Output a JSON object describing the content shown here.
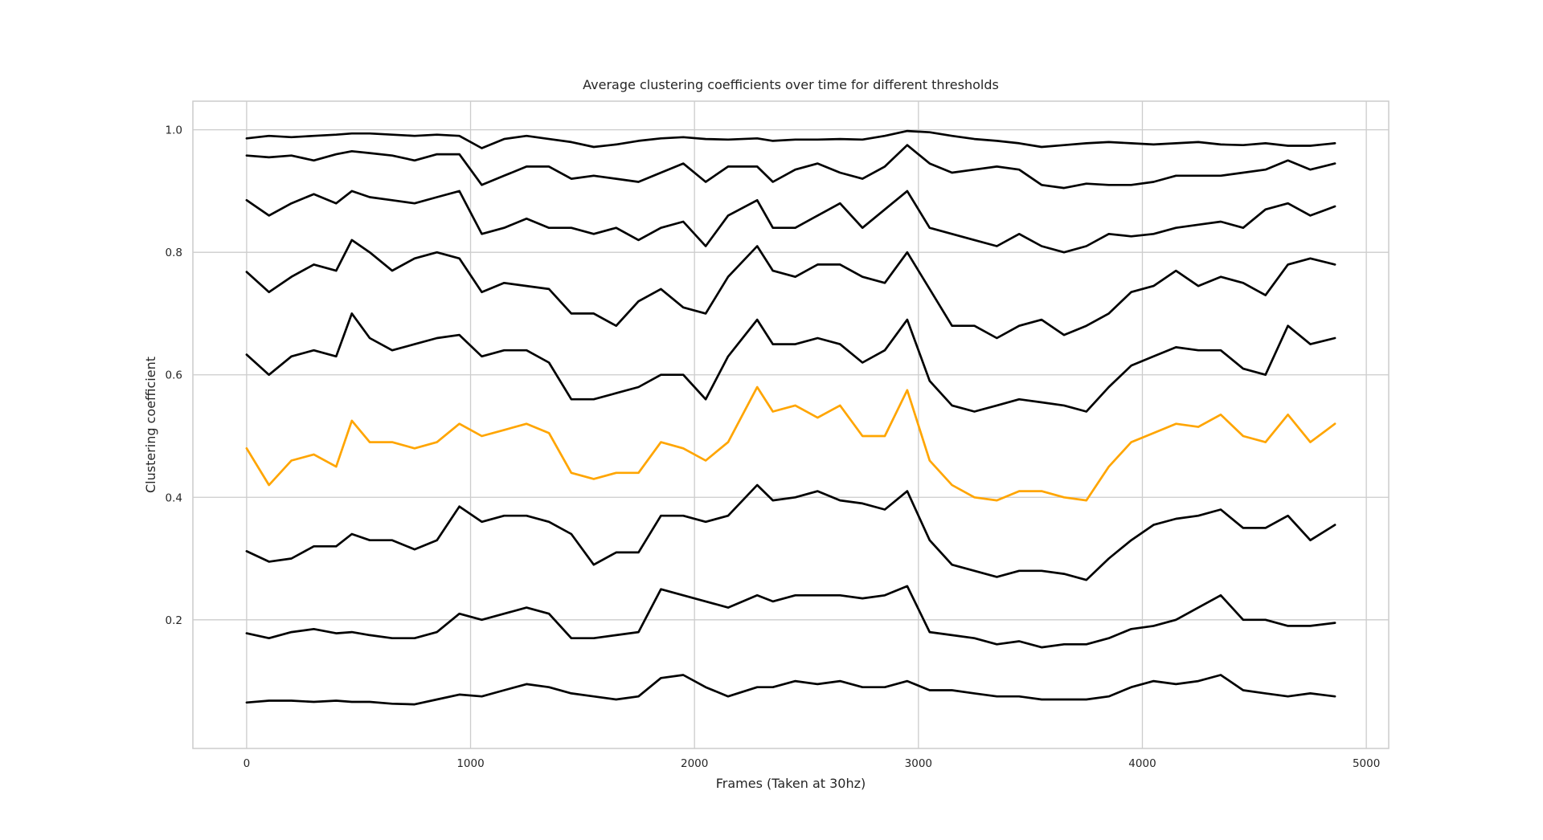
{
  "chart_data": {
    "type": "line",
    "title": "Average clustering coefficients over time for different thresholds",
    "xlabel": "Frames (Taken at 30hz)",
    "ylabel": "Clustering coefficient",
    "xlim": [
      -240,
      5100
    ],
    "ylim": [
      -0.01,
      1.0467
    ],
    "x_ticks": [
      0,
      1000,
      2000,
      3000,
      4000,
      5000
    ],
    "y_ticks": [
      0.2,
      0.4,
      0.6,
      0.8,
      1.0
    ],
    "x_tick_labels": [
      "0",
      "1000",
      "2000",
      "3000",
      "4000",
      "5000"
    ],
    "y_tick_labels": [
      "0.2",
      "0.4",
      "0.6",
      "0.8",
      "1.0"
    ],
    "grid": true,
    "legend": "none",
    "x": [
      0,
      100,
      200,
      300,
      400,
      470,
      550,
      650,
      750,
      850,
      950,
      1050,
      1150,
      1250,
      1350,
      1450,
      1550,
      1650,
      1750,
      1850,
      1950,
      2050,
      2150,
      2280,
      2350,
      2450,
      2550,
      2650,
      2750,
      2850,
      2950,
      3050,
      3150,
      3250,
      3350,
      3450,
      3550,
      3650,
      3750,
      3850,
      3950,
      4050,
      4150,
      4250,
      4350,
      4450,
      4550,
      4650,
      4750,
      4860
    ],
    "series": [
      {
        "color": "#000000",
        "values": [
          0.986,
          0.99,
          0.988,
          0.99,
          0.992,
          0.994,
          0.994,
          0.992,
          0.99,
          0.992,
          0.99,
          0.97,
          0.985,
          0.99,
          0.985,
          0.98,
          0.972,
          0.976,
          0.982,
          0.986,
          0.988,
          0.985,
          0.984,
          0.986,
          0.982,
          0.984,
          0.984,
          0.985,
          0.984,
          0.99,
          0.998,
          0.996,
          0.99,
          0.985,
          0.982,
          0.978,
          0.972,
          0.975,
          0.978,
          0.98,
          0.978,
          0.976,
          0.978,
          0.98,
          0.976,
          0.975,
          0.978,
          0.974,
          0.974,
          0.978
        ]
      },
      {
        "color": "#000000",
        "values": [
          0.958,
          0.955,
          0.958,
          0.95,
          0.96,
          0.965,
          0.962,
          0.958,
          0.95,
          0.96,
          0.96,
          0.91,
          0.925,
          0.94,
          0.94,
          0.92,
          0.925,
          0.92,
          0.915,
          0.93,
          0.945,
          0.915,
          0.94,
          0.94,
          0.915,
          0.935,
          0.945,
          0.93,
          0.92,
          0.94,
          0.975,
          0.945,
          0.93,
          0.935,
          0.94,
          0.935,
          0.91,
          0.905,
          0.912,
          0.91,
          0.91,
          0.915,
          0.925,
          0.925,
          0.925,
          0.93,
          0.935,
          0.95,
          0.935,
          0.945
        ]
      },
      {
        "color": "#000000",
        "values": [
          0.885,
          0.86,
          0.88,
          0.895,
          0.88,
          0.9,
          0.89,
          0.885,
          0.88,
          0.89,
          0.9,
          0.83,
          0.84,
          0.855,
          0.84,
          0.84,
          0.83,
          0.84,
          0.82,
          0.84,
          0.85,
          0.81,
          0.86,
          0.885,
          0.84,
          0.84,
          0.86,
          0.88,
          0.84,
          0.87,
          0.9,
          0.84,
          0.83,
          0.82,
          0.81,
          0.83,
          0.81,
          0.8,
          0.81,
          0.83,
          0.826,
          0.83,
          0.84,
          0.845,
          0.85,
          0.84,
          0.87,
          0.88,
          0.86,
          0.875
        ]
      },
      {
        "color": "#000000",
        "values": [
          0.768,
          0.735,
          0.76,
          0.78,
          0.77,
          0.82,
          0.8,
          0.77,
          0.79,
          0.8,
          0.79,
          0.735,
          0.75,
          0.745,
          0.74,
          0.7,
          0.7,
          0.68,
          0.72,
          0.74,
          0.71,
          0.7,
          0.76,
          0.81,
          0.77,
          0.76,
          0.78,
          0.78,
          0.76,
          0.75,
          0.8,
          0.74,
          0.68,
          0.68,
          0.66,
          0.68,
          0.69,
          0.665,
          0.68,
          0.7,
          0.735,
          0.745,
          0.77,
          0.745,
          0.76,
          0.75,
          0.73,
          0.78,
          0.79,
          0.78
        ]
      },
      {
        "color": "#000000",
        "values": [
          0.633,
          0.6,
          0.63,
          0.64,
          0.63,
          0.7,
          0.66,
          0.64,
          0.65,
          0.66,
          0.665,
          0.63,
          0.64,
          0.64,
          0.62,
          0.56,
          0.56,
          0.57,
          0.58,
          0.6,
          0.6,
          0.56,
          0.63,
          0.69,
          0.65,
          0.65,
          0.66,
          0.65,
          0.62,
          0.64,
          0.69,
          0.59,
          0.55,
          0.54,
          0.55,
          0.56,
          0.555,
          0.55,
          0.54,
          0.58,
          0.615,
          0.63,
          0.645,
          0.64,
          0.64,
          0.61,
          0.6,
          0.68,
          0.65,
          0.66
        ]
      },
      {
        "color": "#FFA500",
        "values": [
          0.48,
          0.42,
          0.46,
          0.47,
          0.45,
          0.525,
          0.49,
          0.49,
          0.48,
          0.49,
          0.52,
          0.5,
          0.51,
          0.52,
          0.505,
          0.44,
          0.43,
          0.44,
          0.44,
          0.49,
          0.48,
          0.46,
          0.49,
          0.58,
          0.54,
          0.55,
          0.53,
          0.55,
          0.5,
          0.5,
          0.575,
          0.46,
          0.42,
          0.4,
          0.395,
          0.41,
          0.41,
          0.4,
          0.395,
          0.45,
          0.49,
          0.505,
          0.52,
          0.515,
          0.535,
          0.5,
          0.49,
          0.535,
          0.49,
          0.52
        ]
      },
      {
        "color": "#000000",
        "values": [
          0.312,
          0.295,
          0.3,
          0.32,
          0.32,
          0.34,
          0.33,
          0.33,
          0.315,
          0.33,
          0.385,
          0.36,
          0.37,
          0.37,
          0.36,
          0.34,
          0.29,
          0.31,
          0.31,
          0.37,
          0.37,
          0.36,
          0.37,
          0.42,
          0.395,
          0.4,
          0.41,
          0.395,
          0.39,
          0.38,
          0.41,
          0.33,
          0.29,
          0.28,
          0.27,
          0.28,
          0.28,
          0.275,
          0.265,
          0.3,
          0.33,
          0.355,
          0.365,
          0.37,
          0.38,
          0.35,
          0.35,
          0.37,
          0.33,
          0.355
        ]
      },
      {
        "color": "#000000",
        "values": [
          0.178,
          0.17,
          0.18,
          0.185,
          0.178,
          0.18,
          0.175,
          0.17,
          0.17,
          0.18,
          0.21,
          0.2,
          0.21,
          0.22,
          0.21,
          0.17,
          0.17,
          0.175,
          0.18,
          0.25,
          0.24,
          0.23,
          0.22,
          0.24,
          0.23,
          0.24,
          0.24,
          0.24,
          0.235,
          0.24,
          0.255,
          0.18,
          0.175,
          0.17,
          0.16,
          0.165,
          0.155,
          0.16,
          0.16,
          0.17,
          0.185,
          0.19,
          0.2,
          0.22,
          0.24,
          0.2,
          0.2,
          0.19,
          0.19,
          0.195
        ]
      },
      {
        "color": "#000000",
        "values": [
          0.065,
          0.068,
          0.068,
          0.066,
          0.068,
          0.066,
          0.066,
          0.063,
          0.062,
          0.07,
          0.078,
          0.075,
          0.085,
          0.095,
          0.09,
          0.08,
          0.075,
          0.07,
          0.075,
          0.105,
          0.11,
          0.09,
          0.075,
          0.09,
          0.09,
          0.1,
          0.095,
          0.1,
          0.09,
          0.09,
          0.1,
          0.085,
          0.085,
          0.08,
          0.075,
          0.075,
          0.07,
          0.07,
          0.07,
          0.075,
          0.09,
          0.1,
          0.095,
          0.1,
          0.11,
          0.085,
          0.08,
          0.075,
          0.08,
          0.075
        ]
      }
    ]
  }
}
